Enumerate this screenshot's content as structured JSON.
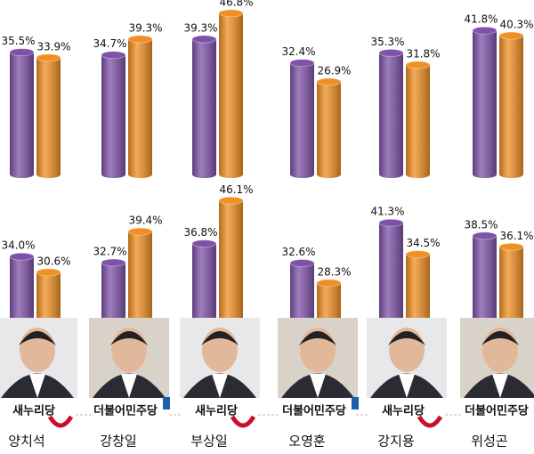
{
  "chart_data": [
    {
      "type": "bar",
      "series": [
        {
          "color": "#7e52a8",
          "values": [
            35.5,
            34.7,
            39.3,
            32.4,
            35.3,
            41.8
          ],
          "value_labels": [
            "35.5%",
            "34.7%",
            "39.3%",
            "32.4%",
            "35.3%",
            "41.8%"
          ]
        },
        {
          "color": "#f08f22",
          "values": [
            33.9,
            39.3,
            46.8,
            26.9,
            31.8,
            40.3
          ],
          "value_labels": [
            "33.9%",
            "39.3%",
            "46.8%",
            "26.9%",
            "31.8%",
            "40.3%"
          ]
        }
      ]
    },
    {
      "type": "bar",
      "series": [
        {
          "color": "#7e52a8",
          "values": [
            34.0,
            32.7,
            36.8,
            32.6,
            41.3,
            38.5
          ],
          "value_labels": [
            "34.0%",
            "32.7%",
            "36.8%",
            "32.6%",
            "41.3%",
            "38.5%"
          ]
        },
        {
          "color": "#f08f22",
          "values": [
            30.6,
            39.4,
            46.1,
            28.3,
            34.5,
            36.1
          ],
          "value_labels": [
            "30.6%",
            "39.4%",
            "46.1%",
            "28.3%",
            "34.5%",
            "36.1%"
          ]
        }
      ]
    }
  ],
  "candidates": [
    {
      "name": "양치석",
      "party": "새누리당"
    },
    {
      "name": "강창일",
      "party": "더불어민주당"
    },
    {
      "name": "부상일",
      "party": "새누리당"
    },
    {
      "name": "오영훈",
      "party": "더불어민주당"
    },
    {
      "name": "강지용",
      "party": "새누리당"
    },
    {
      "name": "위성곤",
      "party": "더불어민주당"
    }
  ]
}
